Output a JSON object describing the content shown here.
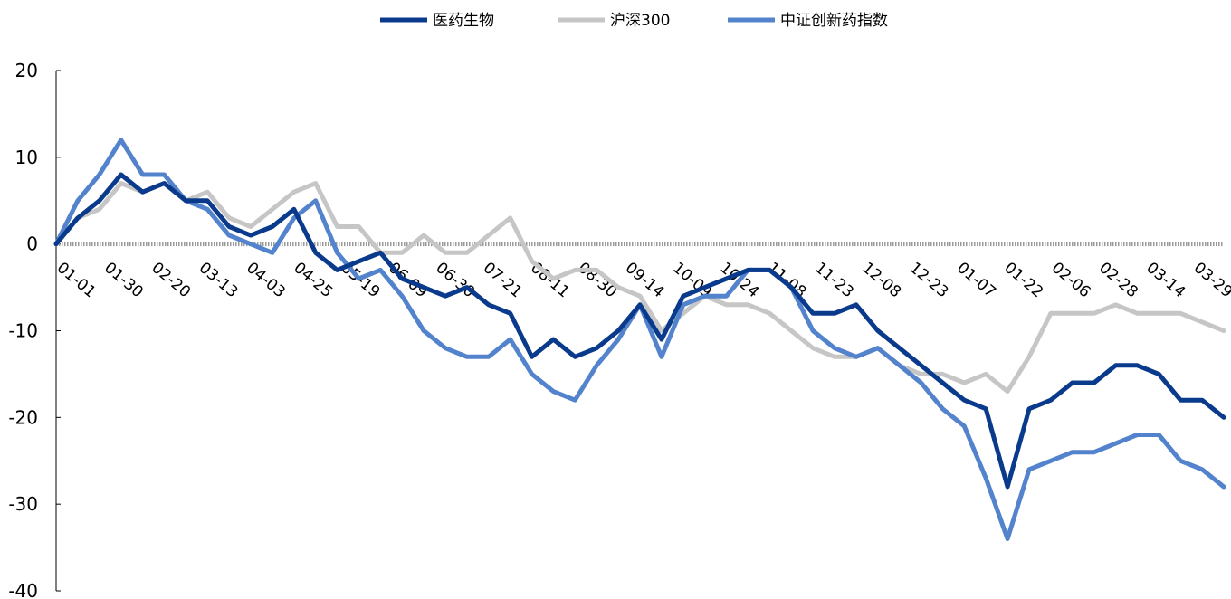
{
  "chart_data": {
    "type": "line",
    "title": "",
    "xlabel": "",
    "ylabel": "",
    "ylim": [
      -40,
      20
    ],
    "yticks": [
      20,
      10,
      0,
      -10,
      -20,
      -30,
      -40
    ],
    "x_tick_labels": [
      "01-01",
      "01-30",
      "02-20",
      "03-13",
      "04-03",
      "04-25",
      "05-19",
      "06-09",
      "06-30",
      "07-21",
      "08-11",
      "08-30",
      "09-14",
      "10-09",
      "10-24",
      "11-08",
      "11-23",
      "12-08",
      "12-23",
      "01-07",
      "01-22",
      "02-06",
      "02-28",
      "03-14",
      "03-29"
    ],
    "legend_position": "top-center",
    "grid": false,
    "series": [
      {
        "name": "医药生物",
        "color": "#0A3A8C",
        "values": [
          0,
          3,
          5,
          8,
          6,
          7,
          5,
          5,
          2,
          1,
          2,
          4,
          -1,
          -3,
          -2,
          -1,
          -4,
          -5,
          -6,
          -5,
          -7,
          -8,
          -13,
          -11,
          -13,
          -12,
          -10,
          -7,
          -11,
          -6,
          -5,
          -4,
          -3,
          -3,
          -5,
          -8,
          -8,
          -7,
          -10,
          -12,
          -14,
          -16,
          -18,
          -19,
          -28,
          -19,
          -18,
          -16,
          -16,
          -14,
          -14,
          -15,
          -18,
          -18,
          -20
        ]
      },
      {
        "name": "沪深300",
        "color": "#C6C6C6",
        "values": [
          0,
          3,
          4,
          7,
          6,
          7,
          5,
          6,
          3,
          2,
          4,
          6,
          7,
          2,
          2,
          -1,
          -1,
          1,
          -1,
          -1,
          1,
          3,
          -2,
          -4,
          -3,
          -3,
          -5,
          -6,
          -10,
          -8,
          -6,
          -7,
          -7,
          -8,
          -10,
          -12,
          -13,
          -13,
          -12,
          -14,
          -15,
          -15,
          -16,
          -15,
          -17,
          -13,
          -8,
          -8,
          -8,
          -7,
          -8,
          -8,
          -8,
          -9,
          -10
        ]
      },
      {
        "name": "中证创新药指数",
        "color": "#5283CC",
        "values": [
          0,
          5,
          8,
          12,
          8,
          8,
          5,
          4,
          1,
          0,
          -1,
          3,
          5,
          -1,
          -4,
          -3,
          -6,
          -10,
          -12,
          -13,
          -13,
          -11,
          -15,
          -17,
          -18,
          -14,
          -11,
          -7,
          -13,
          -7,
          -6,
          -6,
          -3,
          -3,
          -5,
          -10,
          -12,
          -13,
          -12,
          -14,
          -16,
          -19,
          -21,
          -27,
          -34,
          -26,
          -25,
          -24,
          -24,
          -23,
          -22,
          -22,
          -25,
          -26,
          -28
        ]
      }
    ]
  }
}
